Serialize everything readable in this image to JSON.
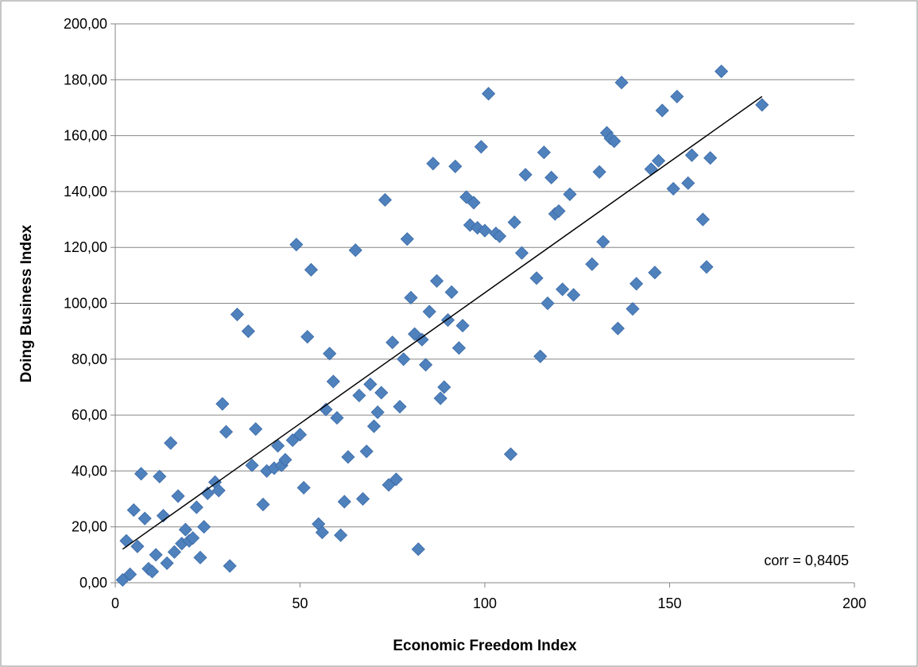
{
  "chart_data": {
    "type": "scatter",
    "title": "",
    "xlabel": "Economic Freedom Index",
    "ylabel": "Doing Business Index",
    "xlim": [
      0,
      200
    ],
    "ylim": [
      0,
      200
    ],
    "x_ticks": [
      "0",
      "50",
      "100",
      "150",
      "200"
    ],
    "y_ticks": [
      "0,00",
      "20,00",
      "40,00",
      "60,00",
      "80,00",
      "100,00",
      "120,00",
      "140,00",
      "160,00",
      "180,00",
      "200,00"
    ],
    "grid": "horizontal",
    "legend": "none",
    "marker": "diamond",
    "marker_color": "#4F81BD",
    "trendline_color": "#000000",
    "trendline": {
      "x": [
        2,
        175
      ],
      "y": [
        12,
        174
      ]
    },
    "annotation": "corr = 0,8405",
    "points": [
      [
        2,
        1
      ],
      [
        3,
        15
      ],
      [
        4,
        3
      ],
      [
        5,
        26
      ],
      [
        6,
        13
      ],
      [
        7,
        39
      ],
      [
        8,
        23
      ],
      [
        9,
        5
      ],
      [
        10,
        4
      ],
      [
        11,
        10
      ],
      [
        12,
        38
      ],
      [
        13,
        24
      ],
      [
        14,
        7
      ],
      [
        15,
        50
      ],
      [
        16,
        11
      ],
      [
        17,
        31
      ],
      [
        18,
        14
      ],
      [
        19,
        19
      ],
      [
        20,
        15
      ],
      [
        21,
        16
      ],
      [
        22,
        27
      ],
      [
        23,
        9
      ],
      [
        24,
        20
      ],
      [
        25,
        32
      ],
      [
        27,
        36
      ],
      [
        28,
        33
      ],
      [
        29,
        64
      ],
      [
        30,
        54
      ],
      [
        31,
        6
      ],
      [
        33,
        96
      ],
      [
        36,
        90
      ],
      [
        37,
        42
      ],
      [
        38,
        55
      ],
      [
        40,
        28
      ],
      [
        41,
        40
      ],
      [
        43,
        41
      ],
      [
        44,
        49
      ],
      [
        45,
        42
      ],
      [
        46,
        44
      ],
      [
        48,
        51
      ],
      [
        49,
        121
      ],
      [
        50,
        53
      ],
      [
        51,
        34
      ],
      [
        52,
        88
      ],
      [
        53,
        112
      ],
      [
        55,
        21
      ],
      [
        56,
        18
      ],
      [
        57,
        62
      ],
      [
        58,
        82
      ],
      [
        59,
        72
      ],
      [
        60,
        59
      ],
      [
        61,
        17
      ],
      [
        62,
        29
      ],
      [
        63,
        45
      ],
      [
        65,
        119
      ],
      [
        66,
        67
      ],
      [
        67,
        30
      ],
      [
        68,
        47
      ],
      [
        69,
        71
      ],
      [
        70,
        56
      ],
      [
        71,
        61
      ],
      [
        72,
        68
      ],
      [
        73,
        137
      ],
      [
        74,
        35
      ],
      [
        75,
        86
      ],
      [
        76,
        37
      ],
      [
        77,
        63
      ],
      [
        78,
        80
      ],
      [
        79,
        123
      ],
      [
        80,
        102
      ],
      [
        81,
        89
      ],
      [
        82,
        12
      ],
      [
        83,
        87
      ],
      [
        84,
        78
      ],
      [
        85,
        97
      ],
      [
        86,
        150
      ],
      [
        87,
        108
      ],
      [
        88,
        66
      ],
      [
        89,
        70
      ],
      [
        90,
        94
      ],
      [
        91,
        104
      ],
      [
        92,
        149
      ],
      [
        93,
        84
      ],
      [
        94,
        92
      ],
      [
        95,
        138
      ],
      [
        96,
        128
      ],
      [
        97,
        136
      ],
      [
        98,
        127
      ],
      [
        99,
        156
      ],
      [
        100,
        126
      ],
      [
        101,
        175
      ],
      [
        103,
        125
      ],
      [
        104,
        124
      ],
      [
        107,
        46
      ],
      [
        108,
        129
      ],
      [
        110,
        118
      ],
      [
        111,
        146
      ],
      [
        114,
        109
      ],
      [
        115,
        81
      ],
      [
        116,
        154
      ],
      [
        117,
        100
      ],
      [
        118,
        145
      ],
      [
        119,
        132
      ],
      [
        120,
        133
      ],
      [
        121,
        105
      ],
      [
        123,
        139
      ],
      [
        124,
        103
      ],
      [
        129,
        114
      ],
      [
        131,
        147
      ],
      [
        132,
        122
      ],
      [
        133,
        161
      ],
      [
        134,
        159
      ],
      [
        135,
        158
      ],
      [
        136,
        91
      ],
      [
        137,
        179
      ],
      [
        140,
        98
      ],
      [
        141,
        107
      ],
      [
        145,
        148
      ],
      [
        146,
        111
      ],
      [
        147,
        151
      ],
      [
        148,
        169
      ],
      [
        151,
        141
      ],
      [
        152,
        174
      ],
      [
        155,
        143
      ],
      [
        156,
        153
      ],
      [
        159,
        130
      ],
      [
        160,
        113
      ],
      [
        161,
        152
      ],
      [
        164,
        183
      ],
      [
        175,
        171
      ]
    ]
  }
}
